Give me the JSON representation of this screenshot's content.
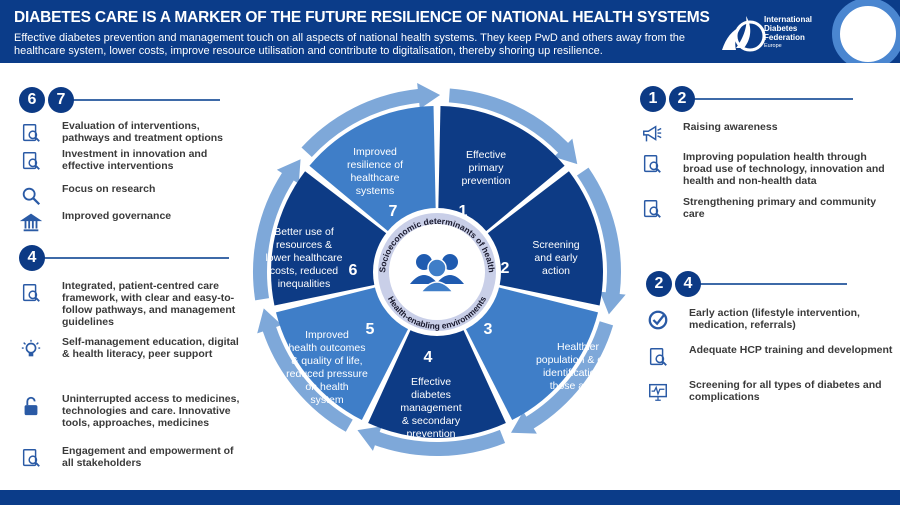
{
  "header": {
    "title": "DIABETES CARE IS A MARKER OF THE FUTURE RESILIENCE OF NATIONAL HEALTH SYSTEMS",
    "subtitle": "Effective diabetes prevention and management touch on all aspects of national health systems. They keep PwD and others away from the healthcare system, lower costs, improve resource utilisation and contribute to digitalisation, thereby shoring up resilience.",
    "logo": {
      "line1": "International",
      "line2": "Diabetes",
      "line3": "Federation",
      "line4": "Europe"
    }
  },
  "colors": {
    "navy": "#0b3c89",
    "dark_segment": "#0d3b85",
    "medium_segment": "#3f7ec8",
    "arrow": "#7ea8d9",
    "center_ring": "#c9cfe8"
  },
  "wheel": {
    "center_top": "Socioeconomic determinants of health",
    "center_bottom": "Health-enabling environments",
    "center_icon": "people-group-icon",
    "segments": [
      {
        "number": "1",
        "lines": [
          "Effective",
          "primary",
          "prevention"
        ]
      },
      {
        "number": "2",
        "lines": [
          "Screening",
          "and early",
          "action"
        ]
      },
      {
        "number": "3",
        "lines": [
          "Healthier",
          "population & early",
          "identification of",
          "those at risk"
        ]
      },
      {
        "number": "4",
        "lines": [
          "Effective",
          "diabetes",
          "management",
          "& secondary",
          "prevention"
        ]
      },
      {
        "number": "5",
        "lines": [
          "Improved",
          "health outcomes",
          "& quality of life,",
          "reduced pressure",
          "on health",
          "system"
        ]
      },
      {
        "number": "6",
        "lines": [
          "Better use of",
          "resources &",
          "lower  healthcare",
          "costs, reduced",
          "inequalities"
        ]
      },
      {
        "number": "7",
        "lines": [
          "Improved",
          "resilience of",
          "healthcare",
          "systems"
        ]
      }
    ]
  },
  "left": {
    "group1": {
      "badges": [
        "6",
        "7"
      ],
      "items": [
        {
          "icon": "document-check-icon",
          "text": "Evaluation of interventions, pathways and treatment options"
        },
        {
          "icon": "investment-plant-hand-icon",
          "text": "Investment in innovation and effective interventions"
        },
        {
          "icon": "magnifier-icon",
          "text": "Focus on research"
        },
        {
          "icon": "government-building-icon",
          "text": "Improved governance"
        }
      ]
    },
    "group2": {
      "badges": [
        "4"
      ],
      "items": [
        {
          "icon": "network-framework-icon",
          "text": "Integrated, patient-centred care framework, with clear and easy-to-follow pathways, and management guidelines"
        },
        {
          "icon": "lightbulb-icon",
          "text": "Self-management education, digital & health literacy, peer support"
        },
        {
          "icon": "unlocked-padlock-icon",
          "text": "Uninterrupted access to medicines, technologies and care. Innovative tools, approaches, medicines"
        },
        {
          "icon": "stakeholders-network-icon",
          "text": "Engagement and empowerment of all stakeholders"
        }
      ]
    }
  },
  "right": {
    "group1": {
      "badges": [
        "1",
        "2"
      ],
      "items": [
        {
          "icon": "megaphone-icon",
          "text": "Raising awareness"
        },
        {
          "icon": "data-document-search-icon",
          "text": "Improving population health through broad use of technology, innovation and health and non-health data"
        },
        {
          "icon": "community-people-icon",
          "text": "Strengthening primary and community care"
        }
      ]
    },
    "group2": {
      "badges": [
        "2",
        "4"
      ],
      "items": [
        {
          "icon": "checkmark-circle-icon",
          "text": "Early action (lifestyle intervention, medication, referrals)"
        },
        {
          "icon": "training-hands-icon",
          "text": "Adequate HCP training and development"
        },
        {
          "icon": "monitor-pulse-icon",
          "text": "Screening for all types of diabetes and complications"
        }
      ]
    }
  }
}
